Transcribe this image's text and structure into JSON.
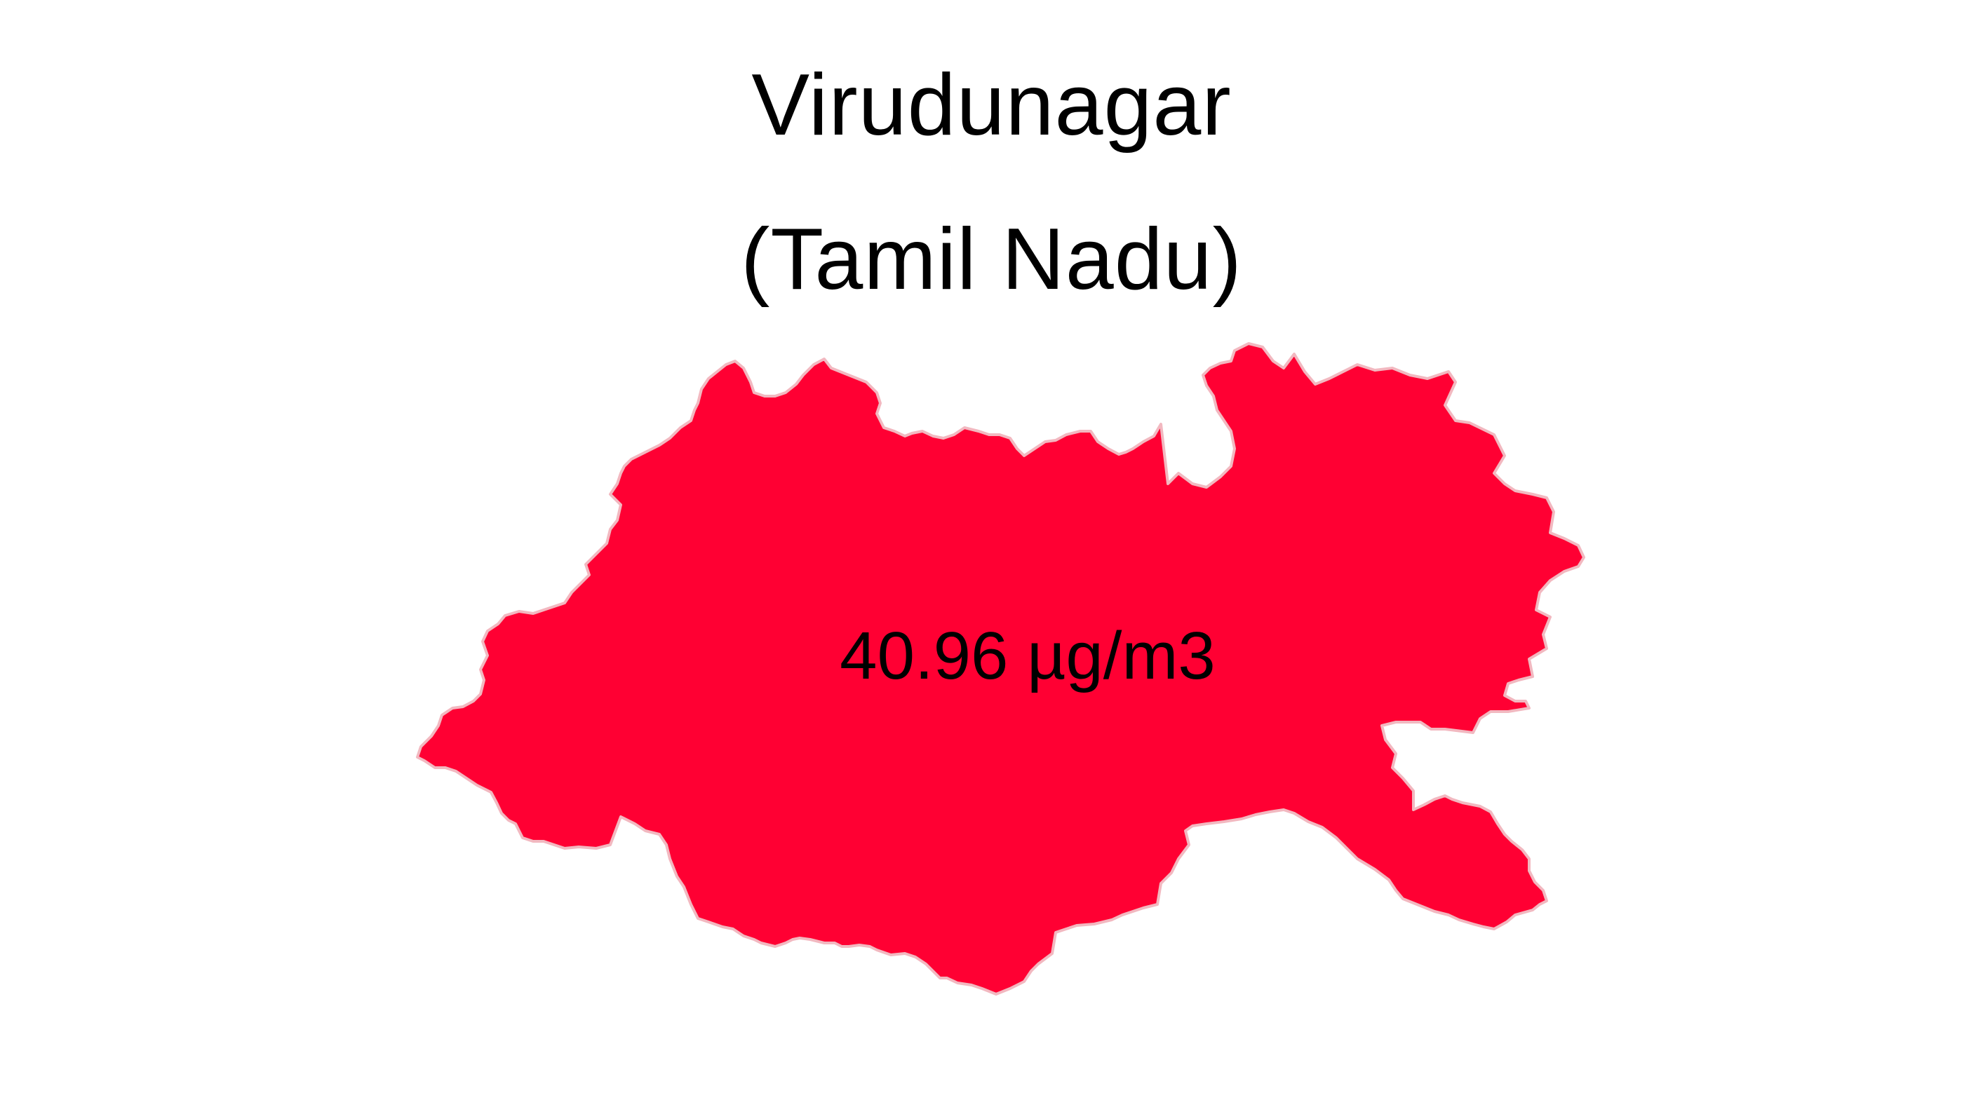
{
  "map": {
    "title_line1": "Virudunagar",
    "title_line2": "(Tamil Nadu)",
    "region_label": "40.96 µg/m3",
    "fill_color": "#FF0033",
    "border_color": "#F2B8C0"
  }
}
